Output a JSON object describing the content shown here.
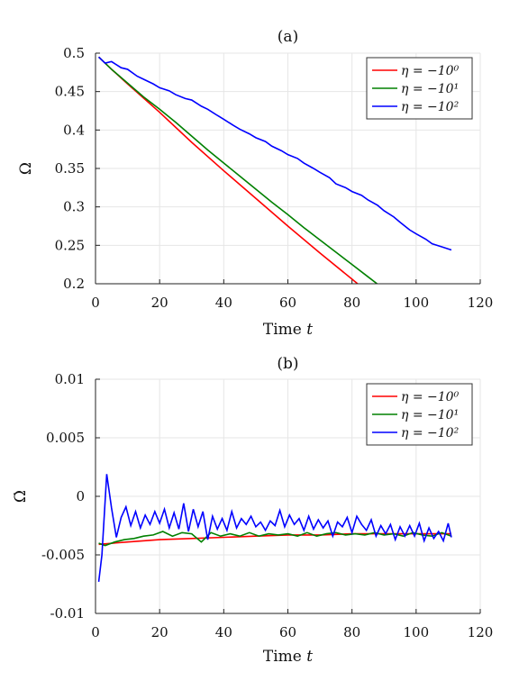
{
  "chart_data": [
    {
      "type": "line",
      "title": "(a)",
      "xlabel": "Time t",
      "ylabel": "Ω",
      "xlim": [
        0,
        120
      ],
      "ylim": [
        0.2,
        0.5
      ],
      "xticks": [
        "0",
        "20",
        "40",
        "60",
        "80",
        "100",
        "120"
      ],
      "yticks": [
        "0.2",
        "0.25",
        "0.3",
        "0.35",
        "0.4",
        "0.45",
        "0.5"
      ],
      "grid": true,
      "legend_position": "top-right",
      "series": [
        {
          "name": "η = −10⁰",
          "color": "#ff0000",
          "x": [
            1,
            5,
            10,
            20,
            30,
            40,
            50,
            60,
            70,
            80,
            87
          ],
          "y": [
            0.495,
            0.479,
            0.46,
            0.423,
            0.384,
            0.347,
            0.311,
            0.275,
            0.24,
            0.206,
            0.182
          ]
        },
        {
          "name": "η = −10¹",
          "color": "#008000",
          "x": [
            1,
            5,
            10,
            15,
            20,
            25,
            30,
            35,
            40,
            45,
            50,
            55,
            60,
            65,
            70,
            75,
            80,
            85,
            90,
            92
          ],
          "y": [
            0.495,
            0.479,
            0.461,
            0.443,
            0.427,
            0.41,
            0.392,
            0.374,
            0.357,
            0.34,
            0.323,
            0.306,
            0.29,
            0.273,
            0.257,
            0.241,
            0.225,
            0.209,
            0.193,
            0.188
          ]
        },
        {
          "name": "η = −10²",
          "color": "#0000ff",
          "x": [
            1,
            3,
            5,
            8,
            10,
            13,
            15,
            18,
            20,
            23,
            25,
            28,
            30,
            33,
            35,
            38,
            40,
            43,
            45,
            48,
            50,
            53,
            55,
            58,
            60,
            63,
            65,
            68,
            70,
            73,
            75,
            78,
            80,
            83,
            85,
            88,
            90,
            93,
            95,
            98,
            100,
            103,
            105,
            108,
            111
          ],
          "y": [
            0.495,
            0.487,
            0.489,
            0.481,
            0.479,
            0.47,
            0.466,
            0.46,
            0.455,
            0.451,
            0.446,
            0.441,
            0.439,
            0.431,
            0.427,
            0.419,
            0.414,
            0.406,
            0.401,
            0.395,
            0.39,
            0.385,
            0.379,
            0.373,
            0.368,
            0.363,
            0.357,
            0.35,
            0.345,
            0.338,
            0.33,
            0.325,
            0.32,
            0.315,
            0.309,
            0.302,
            0.295,
            0.287,
            0.28,
            0.27,
            0.265,
            0.258,
            0.252,
            0.248,
            0.244
          ]
        }
      ]
    },
    {
      "type": "line",
      "title": "(b)",
      "xlabel": "Time t",
      "ylabel": "Ω̇",
      "xlim": [
        0,
        120
      ],
      "ylim": [
        -0.01,
        0.01
      ],
      "xticks": [
        "0",
        "20",
        "40",
        "60",
        "80",
        "100",
        "120"
      ],
      "yticks": [
        "-0.01",
        "-0.005",
        "0",
        "0.005",
        "0.01"
      ],
      "grid": true,
      "legend_position": "top-right",
      "series": [
        {
          "name": "η = −10⁰",
          "color": "#ff0000",
          "x": [
            1,
            10,
            20,
            30,
            40,
            50,
            60,
            70,
            80,
            90,
            100,
            111
          ],
          "y": [
            -0.0041,
            -0.0039,
            -0.0037,
            -0.0036,
            -0.0035,
            -0.0034,
            -0.0033,
            -0.0033,
            -0.0032,
            -0.0032,
            -0.0032,
            -0.0032
          ]
        },
        {
          "name": "η = −10¹",
          "color": "#008000",
          "x": [
            1,
            3,
            6,
            9,
            12,
            15,
            18,
            21,
            24,
            27,
            30,
            33,
            36,
            39,
            42,
            45,
            48,
            51,
            54,
            57,
            60,
            63,
            66,
            69,
            72,
            75,
            78,
            81,
            84,
            87,
            90,
            93,
            96,
            99,
            102,
            105,
            108,
            111
          ],
          "y": [
            -0.004,
            -0.0042,
            -0.0039,
            -0.0037,
            -0.0036,
            -0.0034,
            -0.0033,
            -0.003,
            -0.0034,
            -0.0031,
            -0.0032,
            -0.0039,
            -0.0031,
            -0.0034,
            -0.0032,
            -0.0034,
            -0.0031,
            -0.0034,
            -0.0032,
            -0.0033,
            -0.0032,
            -0.0034,
            -0.0031,
            -0.0034,
            -0.0032,
            -0.0031,
            -0.0033,
            -0.0032,
            -0.0033,
            -0.0031,
            -0.0033,
            -0.0032,
            -0.0034,
            -0.0031,
            -0.0033,
            -0.0034,
            -0.0031,
            -0.0034
          ]
        },
        {
          "name": "η = −10²",
          "color": "#0000ff",
          "x": [
            1,
            2,
            3.5,
            5,
            6.5,
            8,
            9.5,
            11,
            12.5,
            14,
            15.5,
            17,
            18.5,
            20,
            21.5,
            23,
            24.5,
            26,
            27.5,
            29,
            30.5,
            32,
            33.5,
            35,
            36.5,
            38,
            39.5,
            41,
            42.5,
            44,
            45.5,
            47,
            48.5,
            50,
            51.5,
            53,
            54.5,
            56,
            57.5,
            59,
            60.5,
            62,
            63.5,
            65,
            66.5,
            68,
            69.5,
            71,
            72.5,
            74,
            75.5,
            77,
            78.5,
            80,
            81.5,
            83,
            84.5,
            86,
            87.5,
            89,
            90.5,
            92,
            93.5,
            95,
            96.5,
            98,
            99.5,
            101,
            102.5,
            104,
            105.5,
            107,
            108.5,
            110,
            111
          ],
          "y": [
            -0.0073,
            -0.005,
            0.0019,
            -0.001,
            -0.0035,
            -0.0018,
            -0.0009,
            -0.0025,
            -0.0013,
            -0.0027,
            -0.0016,
            -0.0024,
            -0.0013,
            -0.0023,
            -0.0011,
            -0.0027,
            -0.0014,
            -0.0028,
            -0.0006,
            -0.003,
            -0.0011,
            -0.0026,
            -0.0013,
            -0.0037,
            -0.0017,
            -0.0028,
            -0.0019,
            -0.0029,
            -0.0013,
            -0.0027,
            -0.0019,
            -0.0024,
            -0.0017,
            -0.0026,
            -0.0022,
            -0.0029,
            -0.0021,
            -0.0025,
            -0.0012,
            -0.0026,
            -0.0016,
            -0.0024,
            -0.0019,
            -0.0029,
            -0.0017,
            -0.0028,
            -0.002,
            -0.0027,
            -0.0021,
            -0.0034,
            -0.0022,
            -0.0026,
            -0.0018,
            -0.0031,
            -0.0017,
            -0.0024,
            -0.0029,
            -0.002,
            -0.0034,
            -0.0025,
            -0.0032,
            -0.0024,
            -0.0037,
            -0.0026,
            -0.0034,
            -0.0025,
            -0.0034,
            -0.0023,
            -0.0038,
            -0.0027,
            -0.0036,
            -0.003,
            -0.0038,
            -0.0023,
            -0.0035
          ]
        }
      ]
    }
  ]
}
